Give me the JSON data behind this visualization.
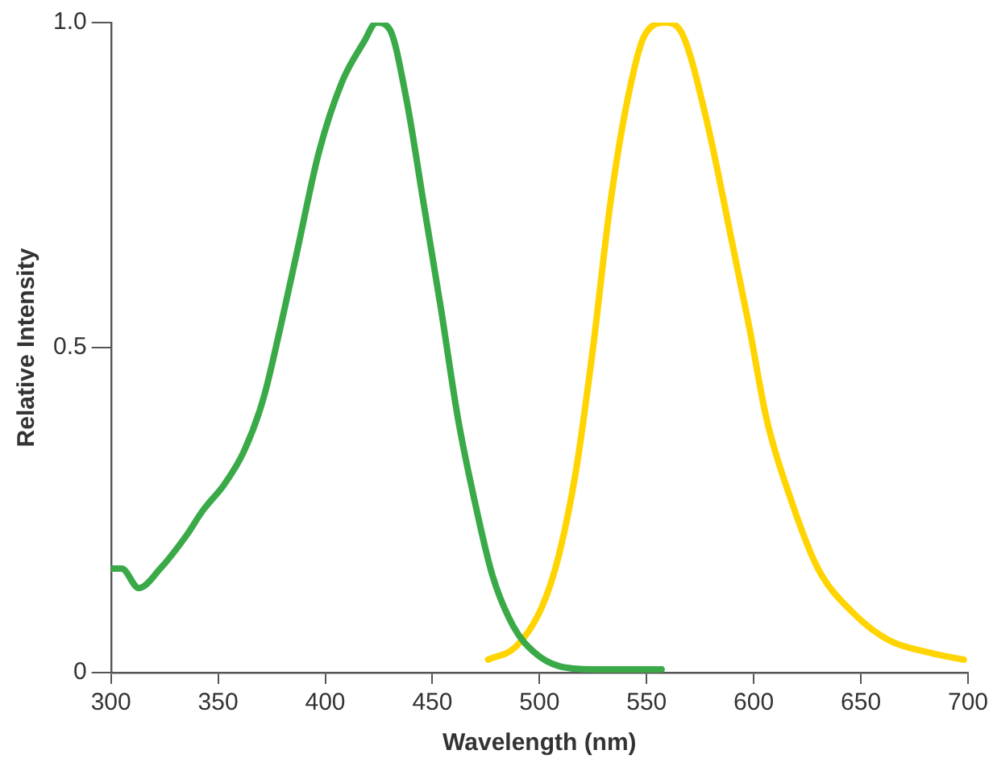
{
  "chart_data": {
    "type": "line",
    "xlabel": "Wavelength (nm)",
    "ylabel": "Relative Intensity",
    "xlim": [
      300,
      700
    ],
    "xticks": [
      300,
      350,
      400,
      450,
      500,
      550,
      600,
      650,
      700
    ],
    "ylim": [
      0,
      1
    ],
    "yticks": [
      0,
      {
        "value": 0.5,
        "label": "0.5"
      },
      {
        "value": 1,
        "label": "1.0"
      }
    ],
    "grid": false,
    "legend": false,
    "marker": "none",
    "line_style": "solid",
    "series": [
      {
        "color": "#3aaa48",
        "x": [
          300,
          305,
          313,
          323,
          335,
          343,
          353,
          362,
          371,
          379,
          387,
          397,
          408,
          418,
          424,
          430,
          438,
          446,
          454,
          462,
          470,
          478,
          488,
          498,
          509,
          525,
          557
        ],
        "values": [
          0.16,
          0.16,
          0.13,
          0.16,
          0.21,
          0.25,
          0.29,
          0.34,
          0.42,
          0.53,
          0.65,
          0.8,
          0.91,
          0.97,
          1.0,
          0.99,
          0.88,
          0.72,
          0.56,
          0.39,
          0.26,
          0.15,
          0.07,
          0.03,
          0.01,
          0.005,
          0.005
        ]
      },
      {
        "color": "#ffd400",
        "x": [
          476,
          489,
          501,
          509,
          517,
          525,
          533,
          541,
          549,
          559,
          567,
          578,
          590,
          598,
          606,
          618,
          630,
          647,
          663,
          683,
          698
        ],
        "values": [
          0.02,
          0.04,
          0.1,
          0.18,
          0.31,
          0.5,
          0.72,
          0.88,
          0.98,
          1.0,
          0.98,
          0.85,
          0.66,
          0.53,
          0.39,
          0.26,
          0.16,
          0.09,
          0.05,
          0.03,
          0.02
        ]
      }
    ]
  }
}
